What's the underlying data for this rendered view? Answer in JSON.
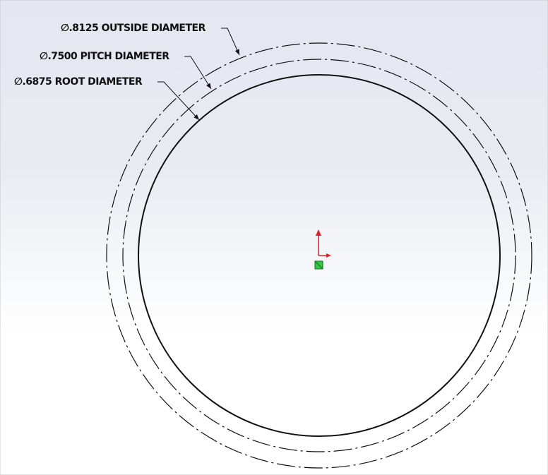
{
  "annotations": [
    {
      "label": "∅.8125 OUTSIDE DIAMETER"
    },
    {
      "label": "∅.7500 PITCH DIAMETER"
    },
    {
      "label": "∅.6875 ROOT DIAMETER"
    }
  ]
}
